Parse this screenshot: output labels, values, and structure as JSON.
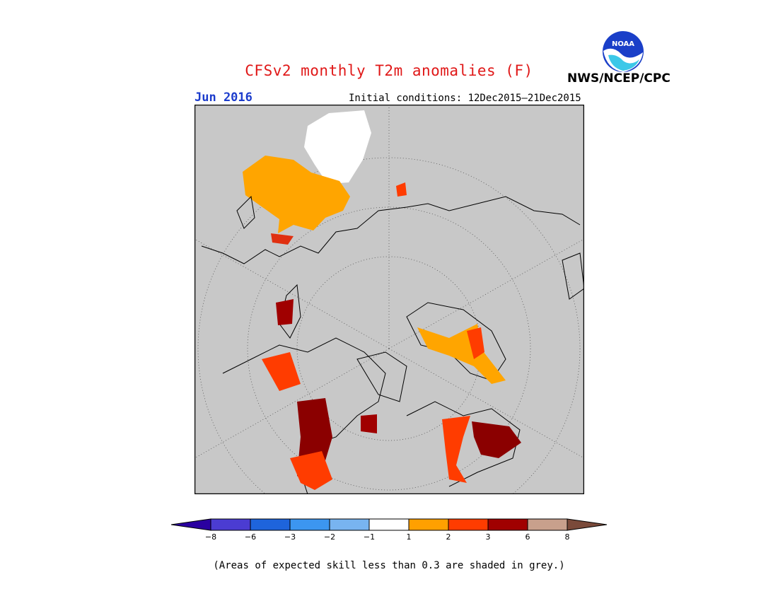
{
  "header": {
    "title": "CFSv2 monthly T2m anomalies (F)",
    "month": "Jun 2016",
    "initial_conditions": "Initial conditions: 12Dec2015—21Dec2015",
    "agency": "NWS/NCEP/CPC",
    "logo_text": "NOAA"
  },
  "map": {
    "projection": "north-polar-stereographic",
    "background_color": "#c8c8c8",
    "coastline_color": "#000000",
    "graticule": "dotted",
    "regions": [
      {
        "name": "northwest-europe",
        "color": "#ffa500"
      },
      {
        "name": "eastern-siberia",
        "color": "#8b0000"
      },
      {
        "name": "canadian-archipelago",
        "color": "#ffa500"
      },
      {
        "name": "central-north-america",
        "color": "#8b0000"
      },
      {
        "name": "southwest-usa",
        "color": "#ff3300"
      },
      {
        "name": "north-africa",
        "color": "#ffffff"
      }
    ]
  },
  "colorbar": {
    "colors": [
      "#2a00a0",
      "#4b3cd2",
      "#1e64dc",
      "#3c96f0",
      "#78b4f0",
      "#ffffff",
      "#ffa000",
      "#ff3c00",
      "#a00000",
      "#c8a08c",
      "#7a4a3a"
    ],
    "labels": [
      "−8",
      "−6",
      "−3",
      "−2",
      "−1",
      "1",
      "2",
      "3",
      "6",
      "8"
    ]
  },
  "footnote": "(Areas of expected skill less than 0.3 are shaded in grey.)"
}
